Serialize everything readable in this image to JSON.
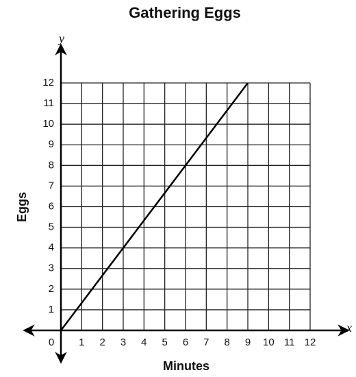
{
  "chart_data": {
    "type": "line",
    "title": "Gathering Eggs",
    "xlabel": "Minutes",
    "ylabel": "Eggs",
    "axis_letters": {
      "x": "x",
      "y": "y"
    },
    "x": [
      0,
      9
    ],
    "series": [
      {
        "name": "Eggs",
        "color": "#000000",
        "values": [
          0,
          12
        ]
      }
    ],
    "xlim": [
      0,
      12
    ],
    "ylim": [
      0,
      12
    ],
    "xticks": [
      0,
      1,
      2,
      3,
      4,
      5,
      6,
      7,
      8,
      9,
      10,
      11,
      12
    ],
    "yticks": [
      1,
      2,
      3,
      4,
      5,
      6,
      7,
      8,
      9,
      10,
      11,
      12
    ],
    "grid": true
  }
}
